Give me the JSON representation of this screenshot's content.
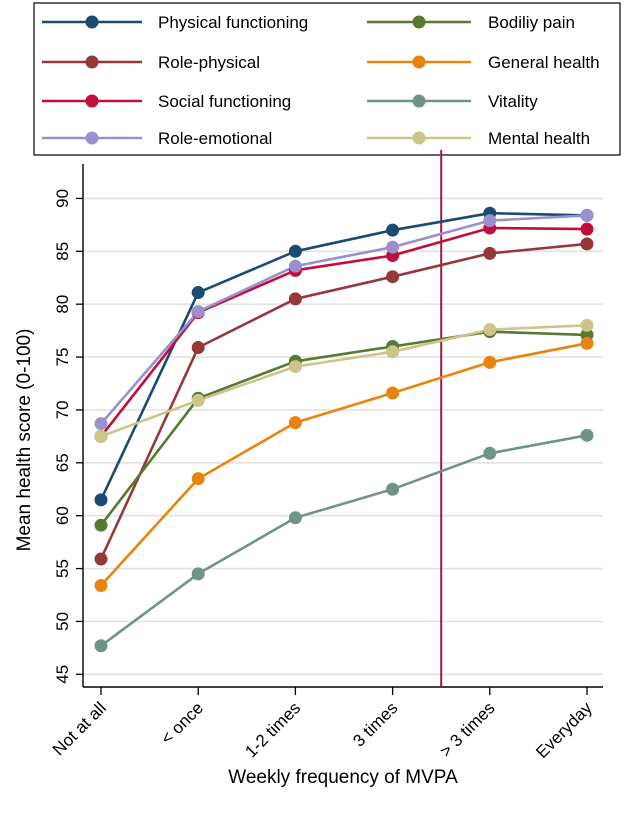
{
  "chart_data": {
    "type": "line",
    "xlabel": "Weekly frequency of MVPA",
    "ylabel": "Mean health score (0-100)",
    "categories": [
      "Not at all",
      "< once",
      "1-2 times",
      "3 times",
      "> 3 times",
      "Everyday"
    ],
    "yticks": [
      45,
      50,
      55,
      60,
      65,
      70,
      75,
      80,
      85,
      90
    ],
    "ylim": [
      43.8,
      92.5
    ],
    "grid": true,
    "legend_position": "top",
    "reference_line_after_category_index": 3.5,
    "reference_line_color": "#a2183f",
    "series": [
      {
        "name": "Physical functioning",
        "color": "#1b4a73",
        "values": [
          61.5,
          81.1,
          85.0,
          87.0,
          88.6,
          88.4
        ]
      },
      {
        "name": "Role-physical",
        "color": "#96373a",
        "values": [
          55.9,
          75.9,
          80.5,
          82.6,
          84.8,
          85.7
        ]
      },
      {
        "name": "Social functioning",
        "color": "#c20e3a",
        "values": [
          67.5,
          79.2,
          83.2,
          84.6,
          87.2,
          87.1
        ]
      },
      {
        "name": "Role-emotional",
        "color": "#9a90cf",
        "values": [
          68.7,
          79.3,
          83.6,
          85.4,
          87.9,
          88.4
        ]
      },
      {
        "name": "Bodiliy pain",
        "color": "#587a30",
        "values": [
          59.1,
          71.1,
          74.6,
          76.0,
          77.4,
          77.1
        ]
      },
      {
        "name": "General health",
        "color": "#e8840e",
        "values": [
          53.4,
          63.5,
          68.8,
          71.6,
          74.5,
          76.3
        ]
      },
      {
        "name": "Vitality",
        "color": "#6f9485",
        "values": [
          47.7,
          54.5,
          59.8,
          62.5,
          65.9,
          67.6
        ]
      },
      {
        "name": "Mental health",
        "color": "#cdc48a",
        "values": [
          67.5,
          70.9,
          74.1,
          75.5,
          77.6,
          78.0
        ]
      }
    ]
  }
}
